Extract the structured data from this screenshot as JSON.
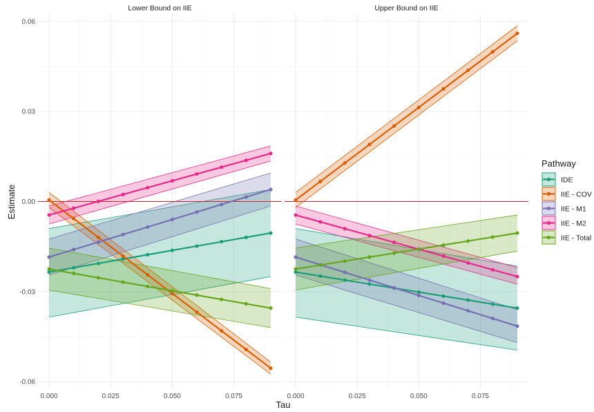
{
  "chart_data": {
    "type": "line",
    "facet_titles": [
      "Lower Bound on IIE",
      "Upper Bound on IIE"
    ],
    "xlabel": "Tau",
    "ylabel": "Estimate",
    "x": [
      0,
      0.01,
      0.02,
      0.03,
      0.04,
      0.05,
      0.06,
      0.07,
      0.08,
      0.09
    ],
    "xlim": [
      -0.0045,
      0.0945
    ],
    "ylim": [
      -0.0625,
      0.0625
    ],
    "x_ticks": [
      0,
      0.025,
      0.05,
      0.075
    ],
    "x_tick_labels": [
      "0.000",
      "0.025",
      "0.050",
      "0.075"
    ],
    "y_ticks": [
      -0.06,
      -0.03,
      0,
      0.03,
      0.06
    ],
    "y_tick_labels": [
      "-0.06",
      "-0.03",
      "0.00",
      "0.03",
      "0.06"
    ],
    "reference_line": {
      "y": 0,
      "color": "#cc2529"
    },
    "grid": true,
    "legend": {
      "title": "Pathway",
      "position": "right"
    },
    "series": [
      {
        "name": "IDE",
        "color": "#1b9e77",
        "lower_bound": {
          "start": -0.0235,
          "end": -0.0105,
          "band_low": [
            -0.0385,
            -0.025
          ],
          "band_high": [
            -0.009,
            0.004
          ]
        },
        "upper_bound": {
          "start": -0.0235,
          "end": -0.0355,
          "band_low": [
            -0.0385,
            -0.0495
          ],
          "band_high": [
            -0.009,
            -0.0215
          ]
        }
      },
      {
        "name": "IIE - COV",
        "color": "#d95f02",
        "lower_bound": {
          "start": 0.0005,
          "end": -0.0555,
          "band_low": [
            -0.002,
            -0.0575
          ],
          "band_high": [
            0.003,
            -0.0535
          ]
        },
        "upper_bound": {
          "start": 0.0005,
          "end": 0.056,
          "band_low": [
            -0.002,
            0.0535
          ],
          "band_high": [
            0.003,
            0.0585
          ]
        }
      },
      {
        "name": "IIE - M1",
        "color": "#7570b3",
        "lower_bound": {
          "start": -0.0185,
          "end": 0.004,
          "band_low": [
            -0.0245,
            -0.0015
          ],
          "band_high": [
            -0.0125,
            0.0095
          ]
        },
        "upper_bound": {
          "start": -0.0185,
          "end": -0.0415,
          "band_low": [
            -0.0245,
            -0.047
          ],
          "band_high": [
            -0.0125,
            -0.036
          ]
        }
      },
      {
        "name": "IIE - M2",
        "color": "#e7298a",
        "lower_bound": {
          "start": -0.0045,
          "end": 0.016,
          "band_low": [
            -0.0075,
            0.0135
          ],
          "band_high": [
            -0.0015,
            0.0185
          ]
        },
        "upper_bound": {
          "start": -0.0045,
          "end": -0.025,
          "band_low": [
            -0.0075,
            -0.0275
          ],
          "band_high": [
            -0.0015,
            -0.022
          ]
        }
      },
      {
        "name": "IIE - Total",
        "color": "#66a61e",
        "lower_bound": {
          "start": -0.0225,
          "end": -0.0355,
          "band_low": [
            -0.0295,
            -0.042
          ],
          "band_high": [
            -0.0155,
            -0.029
          ]
        },
        "upper_bound": {
          "start": -0.0225,
          "end": -0.0105,
          "band_low": [
            -0.0295,
            -0.0165
          ],
          "band_high": [
            -0.0155,
            -0.0045
          ]
        }
      }
    ]
  }
}
